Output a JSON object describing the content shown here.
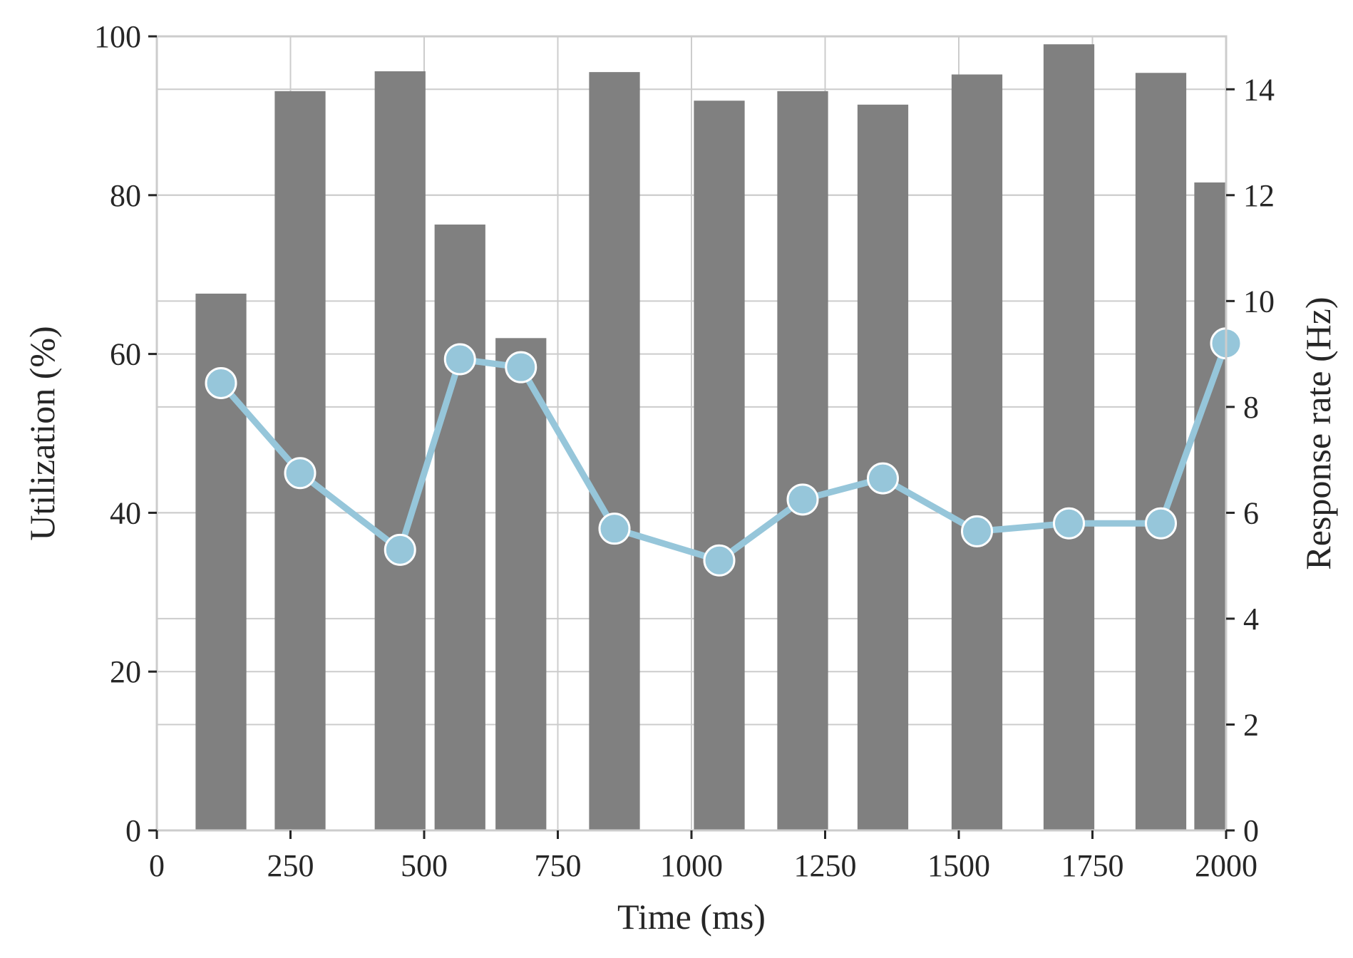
{
  "chart_data": {
    "type": "bar+line",
    "xlabel": "Time (ms)",
    "ylabel_left": "Utilization (%)",
    "ylabel_right": "Response rate (Hz)",
    "xlim": [
      0,
      2000
    ],
    "ylim_left": [
      0,
      100
    ],
    "ylim_right": [
      0,
      15
    ],
    "x_ticks": [
      0,
      250,
      500,
      750,
      1000,
      1250,
      1500,
      1750,
      2000
    ],
    "y_left_ticks": [
      0,
      20,
      40,
      60,
      80,
      100
    ],
    "y_right_ticks": [
      0,
      2,
      4,
      6,
      8,
      10,
      12,
      14
    ],
    "grid": true,
    "bar_width": 95,
    "bars": {
      "x": [
        120,
        268,
        455,
        567,
        681,
        856,
        1052,
        1208,
        1358,
        1534,
        1706,
        1878,
        1988
      ],
      "values": [
        67.6,
        93.1,
        95.6,
        76.3,
        62.0,
        95.5,
        91.9,
        93.1,
        91.4,
        95.2,
        99.0,
        95.4,
        81.6
      ]
    },
    "line": {
      "x": [
        120,
        268,
        455,
        567,
        681,
        856,
        1052,
        1208,
        1358,
        1534,
        1706,
        1878,
        2000
      ],
      "values": [
        8.45,
        6.75,
        5.3,
        8.9,
        8.75,
        5.7,
        5.1,
        6.25,
        6.65,
        5.65,
        5.8,
        5.8,
        9.2
      ]
    },
    "colors": {
      "bar": "#808080",
      "line": "#96c6da",
      "marker_edge": "#ffffff",
      "grid": "#cccccc",
      "spine": "#cccccc",
      "text": "#262626"
    }
  }
}
